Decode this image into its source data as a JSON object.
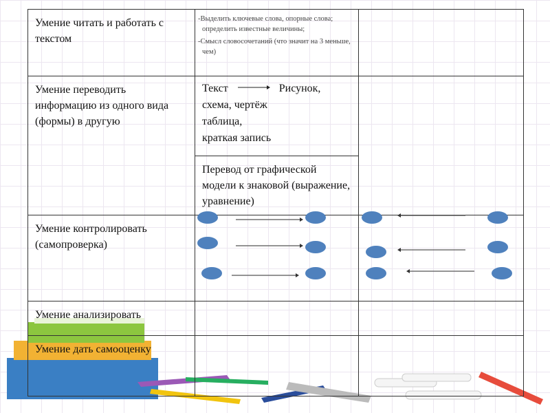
{
  "table": {
    "rows": [
      {
        "skill": "Умение читать и работать с текстом",
        "col2": [
          "-Выделить ключевые слова, опорные слова; определить известные величины;",
          "-Смысл словосочетаний (что значит на 3 меньше, чем)"
        ],
        "col3": ""
      },
      {
        "skill": "Умение переводить информацию из одного вида (формы) в другую",
        "col2_a": {
          "from": "Текст",
          "to": "Рисунок,",
          "lines": [
            "схема, чертёж",
            "таблица,",
            "краткая запись"
          ]
        },
        "col2_b": "Перевод от графической модели к знаковой (выражение, уравнение)",
        "col3": ""
      },
      {
        "skill": "Умение контролировать (самопроверка)",
        "col2": "",
        "col3": ""
      },
      {
        "skill": "Умение анализировать",
        "col2": "",
        "col3": ""
      },
      {
        "skill": "Умение дать самооценку",
        "col2": "",
        "col3": ""
      }
    ]
  },
  "colors": {
    "ellipse": "#4f81bd",
    "border": "#333333",
    "grid": "#ece6f0"
  }
}
